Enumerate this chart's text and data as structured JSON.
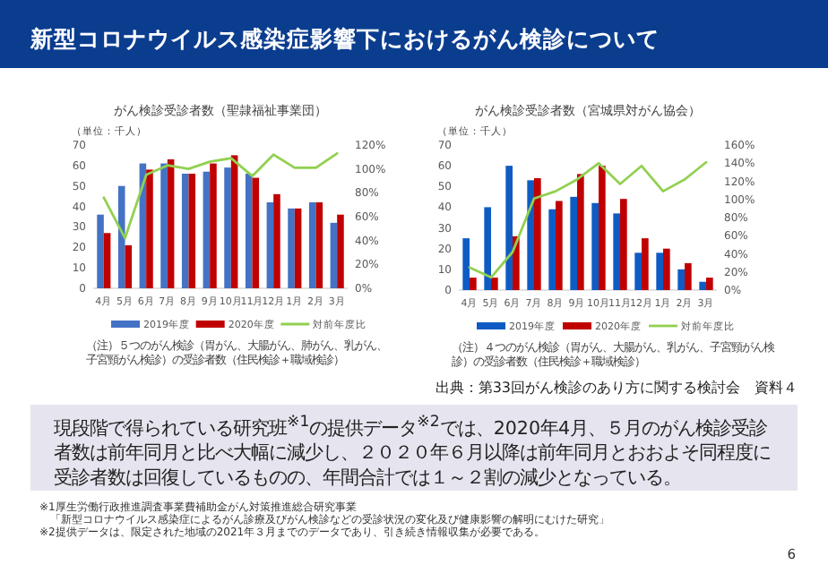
{
  "chart_data": [
    {
      "type": "bar",
      "title": "がん検診受診者数（聖隷福祉事業団）",
      "ylabel": "（単位：千人）",
      "categories": [
        "4月",
        "5月",
        "6月",
        "7月",
        "8月",
        "9月",
        "10月",
        "11月",
        "12月",
        "1月",
        "2月",
        "3月"
      ],
      "series": [
        {
          "name": "2019年度",
          "color": "#4472c4",
          "values": [
            36,
            50,
            61,
            61,
            56,
            57,
            59,
            56,
            42,
            39,
            42,
            32
          ]
        },
        {
          "name": "2020年度",
          "color": "#c00000",
          "values": [
            27,
            21,
            58,
            63,
            56,
            61,
            65,
            54,
            46,
            39,
            42,
            36
          ]
        },
        {
          "name": "対前年度比",
          "color": "#92d050",
          "type": "line",
          "axis": "y2",
          "values": [
            76,
            42,
            95,
            103,
            100,
            106,
            109,
            94,
            112,
            101,
            101,
            113
          ]
        }
      ],
      "ylim": [
        0,
        70
      ],
      "yticks": [
        0,
        10,
        20,
        30,
        40,
        50,
        60,
        70
      ],
      "y2lim": [
        0,
        120
      ],
      "y2ticks": [
        {
          "value": 0,
          "label": "0%"
        },
        {
          "value": 20,
          "label": "20%"
        },
        {
          "value": 40,
          "label": "40%"
        },
        {
          "value": 60,
          "label": "60%"
        },
        {
          "value": 80,
          "label": "80%"
        },
        {
          "value": 100,
          "label": "100%"
        },
        {
          "value": 120,
          "label": "120%"
        }
      ],
      "legend": "bottom",
      "annotations": [
        "（注）５つのがん検診（胃がん、大腸がん、肺がん、乳がん、子宮頸がん検診）の受診者数（住民検診＋職域検診）"
      ]
    },
    {
      "type": "bar",
      "title": "がん検診受診者数（宮城県対がん協会）",
      "ylabel": "（単位：千人）",
      "categories": [
        "4月",
        "5月",
        "6月",
        "7月",
        "8月",
        "9月",
        "10月",
        "11月",
        "12月",
        "1月",
        "2月",
        "3月"
      ],
      "series": [
        {
          "name": "2019年度",
          "color": "#0f5bc4",
          "values": [
            25,
            40,
            60,
            53,
            39,
            45,
            42,
            37,
            18,
            18,
            10,
            4
          ]
        },
        {
          "name": "2020年度",
          "color": "#c00000",
          "values": [
            6,
            6,
            26,
            54,
            43,
            56,
            60,
            44,
            25,
            20,
            13,
            6
          ]
        },
        {
          "name": "対前年度比",
          "color": "#92d050",
          "type": "line",
          "axis": "y2",
          "values": [
            25,
            14,
            42,
            101,
            109,
            122,
            140,
            117,
            137,
            109,
            122,
            141
          ]
        }
      ],
      "ylim": [
        0,
        70
      ],
      "yticks": [
        0,
        10,
        20,
        30,
        40,
        50,
        60,
        70
      ],
      "y2lim": [
        0,
        160
      ],
      "y2ticks": [
        {
          "value": 0,
          "label": "0%"
        },
        {
          "value": 20,
          "label": "20%"
        },
        {
          "value": 40,
          "label": "40%"
        },
        {
          "value": 60,
          "label": "60%"
        },
        {
          "value": 80,
          "label": "80%"
        },
        {
          "value": 100,
          "label": "100%"
        },
        {
          "value": 120,
          "label": "120%"
        },
        {
          "value": 140,
          "label": "140%"
        },
        {
          "value": 160,
          "label": "160%"
        }
      ],
      "legend": "bottom",
      "annotations": [
        "（注）４つのがん検診（胃がん、大腸がん、乳がん、子宮頸がん検診）の受診者数（住民検診＋職域検診）"
      ]
    },
    {
      "type": "other",
      "title": "新型コロナウイルス感染症影響下におけるがん検診について",
      "annotations": [
        "出典：第33回がん検診のあり方に関する検討会　資料４",
        "現段階で得られている研究班$^{※1}$の提供データ$^{※2}$では、2020年4月、５月のがん検診受診者数は前年同月と比べ大幅に減少し、２０２０年６月以降は前年同月とおおよそ同程度に受診者数は回復しているものの、年間合計では１～２割の減少となっている。",
        "※1厚生労働行政推進調査事業費補助金がん対策推進総合研究事業",
        "「新型コロナウイルス感染症によるがん診療及びがん検診などの受診状況の変化及び健康影響の解明にむけた研究」",
        "※2提供データは、限定された地域の2021年３月までのデータであり、引き続き情報収集が必要である。",
        "6"
      ]
    }
  ]
}
